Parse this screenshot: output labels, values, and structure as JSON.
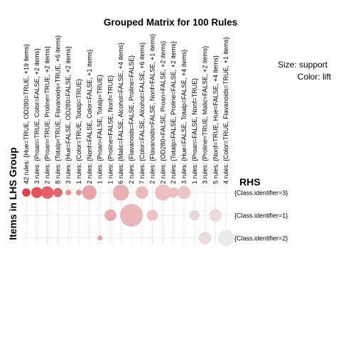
{
  "chart_data": {
    "type": "grouped matrix (balloon plot)",
    "title": "Grouped Matrix for 100 Rules",
    "xlabel": "Items in LHS Group",
    "ylabel": "RHS",
    "legend": {
      "size_label": "Size: support",
      "color_label": "Color: lift"
    },
    "lhs_groups": [
      "42 rules: {Hue=TRUE, OD280=TRUE, +19 items}",
      "3 rules: {Proan=TRUE, Color=FALSE, +2 items}",
      "2 rules: {Proan=TRUE, Proline=TRUE, +2 items}",
      "8 rules: {Totalp=TRUE, Flavanoids=TRUE, +6 items}",
      "3 rules: {Hue=FALSE, OD280=FALSE, +2 items}",
      "1 rules: {Color=TRUE, Totalp=TRUE}",
      "2 rules: {Nonf=FALSE, Color=FALSE, +1 items}",
      "1 rules: {Proan=FALSE, Totalp=TRUE}",
      "1 rules: {Proline=FALSE, Nonf=TRUE}",
      "6 rules: {Malic=FALSE, Alcohol=FALSE, +4 items}",
      "2 rules: {Flavanoids=FALSE, Proline=FALSE}",
      "7 rules: {Color=FALSE, Alcohol=FALSE, +6 items}",
      "2 rules: {Flavanoids=FALSE, Nonf=FALSE, +1 items}",
      "2 rules: {OD280=FALSE, Proan=FALSE, +2 items}",
      "2 rules: {Totalp=FALSE, Proline=FALSE, +2 items}",
      "3 rules: {Hue=FALSE, Totalp=FALSE, +4 items}",
      "1 rules: {Proan=FALSE, Nonf=TRUE}",
      "3 rules: {Proline=TRUE, Malic=FALSE, +2 items}",
      "5 rules: {Nonf=TRUE, Hue=FALSE, +4 items}",
      "4 rules: {Color=TRUE, Flavanoids=TRUE, +1 items}"
    ],
    "rhs": [
      "{Class.identifier=3}",
      "{Class.identifier=1}",
      "{Class.identifier=2}"
    ],
    "points": [
      {
        "group": 0,
        "rhs": 0,
        "support": 0.04,
        "color": "#e0434c"
      },
      {
        "group": 1,
        "rhs": 0,
        "support": 0.07,
        "color": "#e2535b"
      },
      {
        "group": 2,
        "rhs": 0,
        "support": 0.09,
        "color": "#e55f66"
      },
      {
        "group": 3,
        "rhs": 0,
        "support": 0.05,
        "color": "#e6666d"
      },
      {
        "group": 4,
        "rhs": 0,
        "support": 0.02,
        "color": "#e99398"
      },
      {
        "group": 5,
        "rhs": 0,
        "support": 0.02,
        "color": "#e89297"
      },
      {
        "group": 6,
        "rhs": 0,
        "support": 0.12,
        "color": "#e9a3a7"
      },
      {
        "group": 9,
        "rhs": 0,
        "support": 0.15,
        "color": "#eab0b3"
      },
      {
        "group": 11,
        "rhs": 0,
        "support": 0.09,
        "color": "#ebb8bb"
      },
      {
        "group": 13,
        "rhs": 0,
        "support": 0.15,
        "color": "#ecc0c3"
      },
      {
        "group": 14,
        "rhs": 0,
        "support": 0.06,
        "color": "#ebbfc2"
      },
      {
        "group": 15,
        "rhs": 0,
        "support": 0.1,
        "color": "#ecc4c6"
      },
      {
        "group": 8,
        "rhs": 1,
        "support": 0.08,
        "color": "#e9aaae"
      },
      {
        "group": 10,
        "rhs": 1,
        "support": 0.3,
        "color": "#eab6b9"
      },
      {
        "group": 12,
        "rhs": 1,
        "support": 0.07,
        "color": "#ebc1c4"
      },
      {
        "group": 16,
        "rhs": 1,
        "support": 0.06,
        "color": "#ead6d8"
      },
      {
        "group": 18,
        "rhs": 1,
        "support": 0.09,
        "color": "#ebdcde"
      },
      {
        "group": 7,
        "rhs": 2,
        "support": 0.015,
        "color": "#e9a3a7"
      },
      {
        "group": 17,
        "rhs": 2,
        "support": 0.09,
        "color": "#eadcdd"
      },
      {
        "group": 19,
        "rhs": 2,
        "support": 0.15,
        "color": "#ebebeb"
      }
    ],
    "grid": true
  }
}
